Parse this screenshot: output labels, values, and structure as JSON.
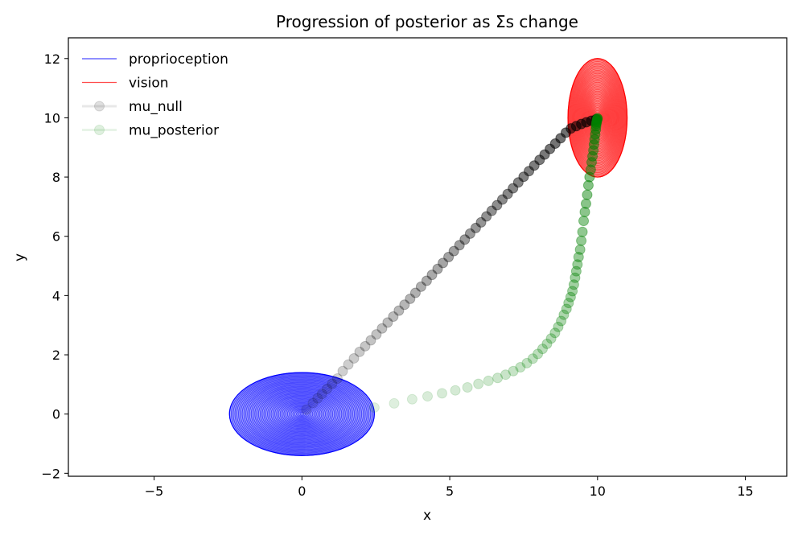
{
  "chart_data": {
    "type": "scatter",
    "title": "Progression of posterior as Σs change",
    "xlabel": "x",
    "ylabel": "y",
    "xlim": [
      -7.9,
      16.4
    ],
    "ylim": [
      -2.1,
      12.7
    ],
    "xticks": [
      -5,
      0,
      5,
      10,
      15
    ],
    "yticks": [
      -2,
      0,
      2,
      4,
      6,
      8,
      10,
      12
    ],
    "xtick_labels": [
      "−5",
      "0",
      "5",
      "10",
      "15"
    ],
    "ytick_labels": [
      "−2",
      "0",
      "2",
      "4",
      "6",
      "8",
      "10",
      "12"
    ],
    "grid": false,
    "legend_position": "top-left",
    "legend": [
      {
        "label": "proprioception",
        "color": "#0000ff",
        "kind": "line"
      },
      {
        "label": "vision",
        "color": "#ff0000",
        "kind": "line"
      },
      {
        "label": "mu_null",
        "color": "#000000",
        "kind": "marker"
      },
      {
        "label": "mu_posterior",
        "color": "#008000",
        "kind": "marker"
      }
    ],
    "ellipses": [
      {
        "name": "proprioception",
        "center": [
          0,
          0
        ],
        "rx": 2.45,
        "ry": 1.4,
        "color": "#0000ff"
      },
      {
        "name": "vision",
        "center": [
          10,
          10
        ],
        "rx": 1.0,
        "ry": 2.0,
        "color": "#ff0000"
      }
    ],
    "series": [
      {
        "name": "mu_null",
        "color": "#000000",
        "x": [
          0.15,
          0.37,
          0.53,
          0.68,
          0.85,
          1.02,
          1.2,
          1.38,
          1.57,
          1.76,
          1.95,
          2.14,
          2.33,
          2.52,
          2.71,
          2.9,
          3.09,
          3.28,
          3.47,
          3.66,
          3.84,
          4.03,
          4.22,
          4.4,
          4.59,
          4.77,
          4.96,
          5.14,
          5.33,
          5.51,
          5.69,
          5.88,
          6.06,
          6.24,
          6.42,
          6.6,
          6.78,
          6.96,
          7.14,
          7.32,
          7.5,
          7.68,
          7.86,
          8.04,
          8.21,
          8.39,
          8.57,
          8.75,
          8.93,
          9.1,
          9.28,
          9.45,
          9.62,
          9.79,
          9.95
        ],
        "y": [
          0.15,
          0.37,
          0.53,
          0.68,
          0.85,
          1.02,
          1.2,
          1.45,
          1.67,
          1.88,
          2.1,
          2.29,
          2.49,
          2.69,
          2.89,
          3.09,
          3.29,
          3.49,
          3.69,
          3.89,
          4.09,
          4.3,
          4.5,
          4.7,
          4.9,
          5.1,
          5.3,
          5.5,
          5.7,
          5.89,
          6.09,
          6.28,
          6.47,
          6.67,
          6.86,
          7.05,
          7.24,
          7.43,
          7.62,
          7.82,
          8.01,
          8.2,
          8.39,
          8.58,
          8.76,
          8.95,
          9.13,
          9.31,
          9.5,
          9.64,
          9.72,
          9.79,
          9.85,
          9.9,
          9.95
        ]
      },
      {
        "name": "mu_posterior",
        "color": "#008000",
        "x": [
          2.45,
          3.12,
          3.73,
          4.25,
          4.74,
          5.19,
          5.6,
          5.97,
          6.31,
          6.62,
          6.89,
          7.15,
          7.39,
          7.61,
          7.81,
          7.98,
          8.14,
          8.29,
          8.43,
          8.56,
          8.67,
          8.77,
          8.86,
          8.95,
          9.02,
          9.09,
          9.15,
          9.2,
          9.24,
          9.28,
          9.32,
          9.36,
          9.41,
          9.45,
          9.49,
          9.53,
          9.57,
          9.61,
          9.65,
          9.69,
          9.73,
          9.77,
          9.8,
          9.83,
          9.86,
          9.88,
          9.9,
          9.92,
          9.94,
          9.95,
          9.96,
          9.97,
          9.98,
          9.99,
          10.0
        ],
        "y": [
          0.22,
          0.36,
          0.5,
          0.6,
          0.7,
          0.8,
          0.9,
          1.02,
          1.12,
          1.22,
          1.33,
          1.45,
          1.58,
          1.72,
          1.87,
          2.03,
          2.2,
          2.37,
          2.55,
          2.74,
          2.94,
          3.14,
          3.35,
          3.55,
          3.75,
          3.95,
          4.15,
          4.37,
          4.6,
          4.82,
          5.05,
          5.3,
          5.55,
          5.85,
          6.15,
          6.52,
          6.82,
          7.1,
          7.4,
          7.72,
          8.0,
          8.25,
          8.5,
          8.7,
          8.9,
          9.1,
          9.27,
          9.44,
          9.6,
          9.72,
          9.8,
          9.86,
          9.91,
          9.95,
          9.98
        ]
      }
    ]
  }
}
